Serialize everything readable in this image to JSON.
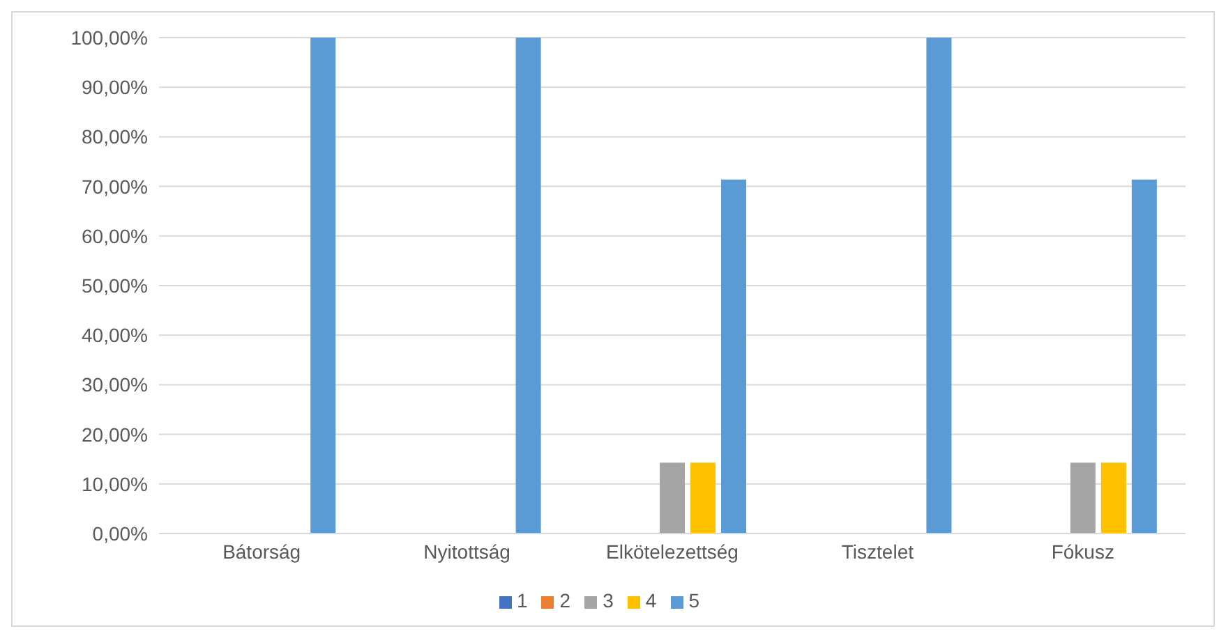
{
  "chart_data": {
    "type": "bar",
    "categories": [
      "Bátorság",
      "Nyitottság",
      "Elkötelezettség",
      "Tisztelet",
      "Fókusz"
    ],
    "series": [
      {
        "name": "1",
        "color": "#4472c4",
        "values": [
          0,
          0,
          0,
          0,
          0
        ]
      },
      {
        "name": "2",
        "color": "#ed7d31",
        "values": [
          0,
          0,
          0,
          0,
          0
        ]
      },
      {
        "name": "3",
        "color": "#a5a5a5",
        "values": [
          0,
          0,
          14.3,
          0,
          14.3
        ]
      },
      {
        "name": "4",
        "color": "#ffc000",
        "values": [
          0,
          0,
          14.3,
          0,
          14.3
        ]
      },
      {
        "name": "5",
        "color": "#5b9bd5",
        "values": [
          100,
          100,
          71.4,
          100,
          71.4
        ]
      }
    ],
    "ylim": [
      0,
      100
    ],
    "yticks": [
      {
        "value": 0,
        "label": "0,00%"
      },
      {
        "value": 10,
        "label": "10,00%"
      },
      {
        "value": 20,
        "label": "20,00%"
      },
      {
        "value": 30,
        "label": "30,00%"
      },
      {
        "value": 40,
        "label": "40,00%"
      },
      {
        "value": 50,
        "label": "50,00%"
      },
      {
        "value": 60,
        "label": "60,00%"
      },
      {
        "value": 70,
        "label": "70,00%"
      },
      {
        "value": 80,
        "label": "80,00%"
      },
      {
        "value": 90,
        "label": "90,00%"
      },
      {
        "value": 100,
        "label": "100,00%"
      }
    ],
    "grid": "y",
    "legend": "bottom"
  }
}
